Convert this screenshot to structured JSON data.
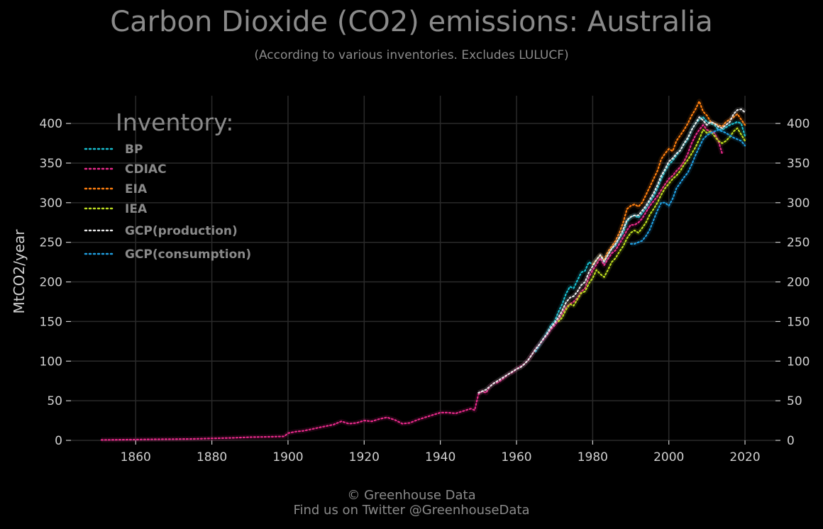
{
  "title": "Carbon Dioxide (CO2) emissions: Australia",
  "subtitle": "(According to various inventories. Excludes LULUCF)",
  "footer": {
    "line1": "© Greenhouse Data",
    "line2": "Find us on Twitter @GreenhouseData"
  },
  "chart_data": {
    "type": "line",
    "ylabel": "MtCO2/year",
    "xlim": [
      1843,
      2028
    ],
    "ylim": [
      0,
      435
    ],
    "x_ticks": [
      1860,
      1880,
      1900,
      1920,
      1940,
      1960,
      1980,
      2000,
      2020
    ],
    "y_ticks": [
      0,
      50,
      100,
      150,
      200,
      250,
      300,
      350,
      400
    ],
    "grid": true,
    "legend": {
      "title": "Inventory:",
      "placement": "top-left"
    },
    "series": [
      {
        "name": "BP",
        "color": "#17becf",
        "x": [
          1965,
          1966,
          1967,
          1968,
          1969,
          1970,
          1971,
          1972,
          1973,
          1974,
          1975,
          1976,
          1977,
          1978,
          1979,
          1980,
          1981,
          1982,
          1983,
          1984,
          1985,
          1986,
          1987,
          1988,
          1989,
          1990,
          1991,
          1992,
          1993,
          1994,
          1995,
          1996,
          1997,
          1998,
          1999,
          2000,
          2001,
          2002,
          2003,
          2004,
          2005,
          2006,
          2007,
          2008,
          2009,
          2010,
          2011,
          2012,
          2013,
          2014,
          2015,
          2016,
          2017,
          2018,
          2019,
          2020
        ],
        "y": [
          112,
          120,
          128,
          136,
          145,
          150,
          162,
          172,
          185,
          194,
          192,
          202,
          212,
          214,
          225,
          222,
          228,
          233,
          225,
          235,
          242,
          246,
          255,
          262,
          276,
          282,
          284,
          281,
          287,
          293,
          301,
          308,
          318,
          330,
          340,
          348,
          353,
          360,
          366,
          374,
          380,
          392,
          400,
          405,
          408,
          402,
          400,
          398,
          392,
          392,
          395,
          398,
          400,
          402,
          400,
          384
        ]
      },
      {
        "name": "CDIAC",
        "color": "#e7298a",
        "x": [
          1851,
          1855,
          1860,
          1865,
          1870,
          1875,
          1880,
          1885,
          1890,
          1895,
          1899,
          1900,
          1902,
          1904,
          1906,
          1908,
          1910,
          1912,
          1914,
          1916,
          1918,
          1920,
          1922,
          1924,
          1926,
          1928,
          1930,
          1932,
          1934,
          1936,
          1938,
          1940,
          1942,
          1944,
          1946,
          1948,
          1949,
          1950,
          1951,
          1952,
          1953,
          1954,
          1955,
          1956,
          1957,
          1958,
          1959,
          1960,
          1961,
          1962,
          1963,
          1964,
          1965,
          1966,
          1967,
          1968,
          1969,
          1970,
          1971,
          1972,
          1973,
          1974,
          1975,
          1976,
          1977,
          1978,
          1979,
          1980,
          1981,
          1982,
          1983,
          1984,
          1985,
          1986,
          1987,
          1988,
          1989,
          1990,
          1991,
          1992,
          1993,
          1994,
          1995,
          1996,
          1997,
          1998,
          1999,
          2000,
          2001,
          2002,
          2003,
          2004,
          2005,
          2006,
          2007,
          2008,
          2009,
          2010,
          2011,
          2012,
          2013,
          2014
        ],
        "y": [
          0.5,
          0.7,
          1,
          1.3,
          1.5,
          1.8,
          2.5,
          3,
          4,
          4.5,
          5,
          9,
          11,
          12,
          14,
          16,
          18,
          20,
          24,
          21,
          22,
          25,
          24,
          27,
          29,
          26,
          21,
          22,
          26,
          29,
          32,
          35,
          35,
          34,
          37,
          40,
          38,
          58,
          62,
          60,
          68,
          72,
          73,
          76,
          80,
          84,
          86,
          90,
          93,
          96,
          101,
          108,
          115,
          121,
          127,
          133,
          140,
          145,
          152,
          160,
          168,
          172,
          175,
          180,
          188,
          192,
          206,
          215,
          222,
          230,
          221,
          229,
          236,
          240,
          248,
          256,
          265,
          272,
          272,
          275,
          280,
          288,
          296,
          302,
          308,
          316,
          323,
          330,
          334,
          340,
          345,
          352,
          362,
          375,
          385,
          392,
          398,
          392,
          390,
          388,
          378,
          362
        ]
      },
      {
        "name": "EIA",
        "color": "#ff7f0e",
        "x": [
          1980,
          1981,
          1982,
          1983,
          1984,
          1985,
          1986,
          1987,
          1988,
          1989,
          1990,
          1991,
          1992,
          1993,
          1994,
          1995,
          1996,
          1997,
          1998,
          1999,
          2000,
          2001,
          2002,
          2003,
          2004,
          2005,
          2006,
          2007,
          2008,
          2009,
          2010,
          2011,
          2012,
          2013,
          2014,
          2015,
          2016,
          2017,
          2018,
          2019,
          2020
        ],
        "y": [
          222,
          228,
          234,
          228,
          238,
          245,
          252,
          262,
          275,
          292,
          296,
          298,
          295,
          300,
          310,
          320,
          330,
          340,
          355,
          362,
          368,
          365,
          378,
          385,
          392,
          400,
          410,
          418,
          428,
          415,
          410,
          402,
          400,
          398,
          396,
          402,
          405,
          408,
          412,
          405,
          398
        ]
      },
      {
        "name": "IEA",
        "color": "#bcdc1f",
        "x": [
          1971,
          1972,
          1973,
          1974,
          1975,
          1976,
          1977,
          1978,
          1979,
          1980,
          1981,
          1982,
          1983,
          1984,
          1985,
          1986,
          1987,
          1988,
          1989,
          1990,
          1991,
          1992,
          1993,
          1994,
          1995,
          1996,
          1997,
          1998,
          1999,
          2000,
          2001,
          2002,
          2003,
          2004,
          2005,
          2006,
          2007,
          2008,
          2009,
          2010,
          2011,
          2012,
          2013,
          2014,
          2015,
          2016,
          2017,
          2018,
          2019,
          2020
        ],
        "y": [
          150,
          155,
          165,
          172,
          170,
          178,
          186,
          188,
          198,
          205,
          215,
          210,
          206,
          215,
          225,
          230,
          238,
          245,
          255,
          262,
          265,
          262,
          268,
          275,
          285,
          292,
          300,
          310,
          318,
          324,
          330,
          334,
          340,
          348,
          354,
          362,
          370,
          380,
          392,
          388,
          390,
          384,
          378,
          375,
          378,
          383,
          390,
          394,
          386,
          378
        ]
      },
      {
        "name": "GCP(production)",
        "color": "#e6e6e6",
        "x": [
          1950,
          1952,
          1954,
          1956,
          1958,
          1960,
          1961,
          1962,
          1963,
          1964,
          1965,
          1966,
          1967,
          1968,
          1969,
          1970,
          1971,
          1972,
          1973,
          1974,
          1975,
          1976,
          1977,
          1978,
          1979,
          1980,
          1981,
          1982,
          1983,
          1984,
          1985,
          1986,
          1987,
          1988,
          1989,
          1990,
          1991,
          1992,
          1993,
          1994,
          1995,
          1996,
          1997,
          1998,
          1999,
          2000,
          2001,
          2002,
          2003,
          2004,
          2005,
          2006,
          2007,
          2008,
          2009,
          2010,
          2011,
          2012,
          2013,
          2014,
          2015,
          2016,
          2017,
          2018,
          2019,
          2020
        ],
        "y": [
          60,
          64,
          72,
          78,
          84,
          90,
          92,
          96,
          101,
          108,
          115,
          121,
          128,
          134,
          142,
          148,
          155,
          164,
          174,
          180,
          182,
          188,
          196,
          200,
          212,
          220,
          228,
          234,
          226,
          234,
          242,
          248,
          256,
          266,
          278,
          282,
          284,
          284,
          290,
          296,
          304,
          312,
          322,
          334,
          342,
          352,
          356,
          362,
          366,
          375,
          382,
          392,
          400,
          408,
          404,
          398,
          402,
          400,
          396,
          394,
          398,
          402,
          412,
          417,
          418,
          414
        ]
      },
      {
        "name": "GCP(consumption)",
        "color": "#1f9ee0",
        "x": [
          1990,
          1991,
          1992,
          1993,
          1994,
          1995,
          1996,
          1997,
          1998,
          1999,
          2000,
          2001,
          2002,
          2003,
          2004,
          2005,
          2006,
          2007,
          2008,
          2009,
          2010,
          2011,
          2012,
          2013,
          2014,
          2015,
          2016,
          2017,
          2018,
          2019,
          2020
        ],
        "y": [
          248,
          248,
          250,
          252,
          258,
          266,
          278,
          290,
          300,
          300,
          296,
          305,
          318,
          325,
          332,
          338,
          348,
          360,
          370,
          380,
          385,
          388,
          390,
          392,
          390,
          388,
          385,
          382,
          380,
          378,
          372
        ]
      }
    ]
  }
}
